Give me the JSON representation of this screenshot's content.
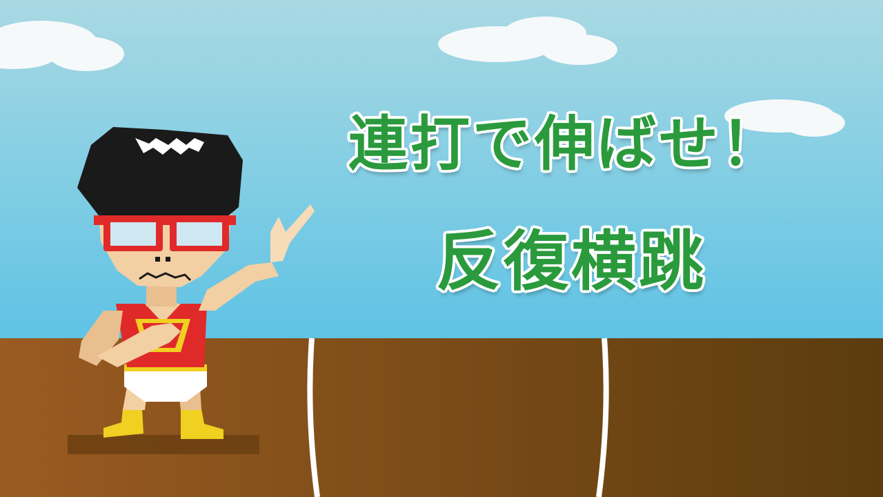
{
  "title": {
    "line1": "連打で伸ばせ！",
    "line2": "反復横跳"
  },
  "colors": {
    "sky_top": "#a9d9e3",
    "sky_bottom": "#5fc3e4",
    "ground_left": "#9a5b22",
    "ground_right": "#5b3c0d",
    "title_green": "#2a9a3c",
    "shirt_red": "#e02a2a",
    "boots_yellow": "#f0d020"
  }
}
